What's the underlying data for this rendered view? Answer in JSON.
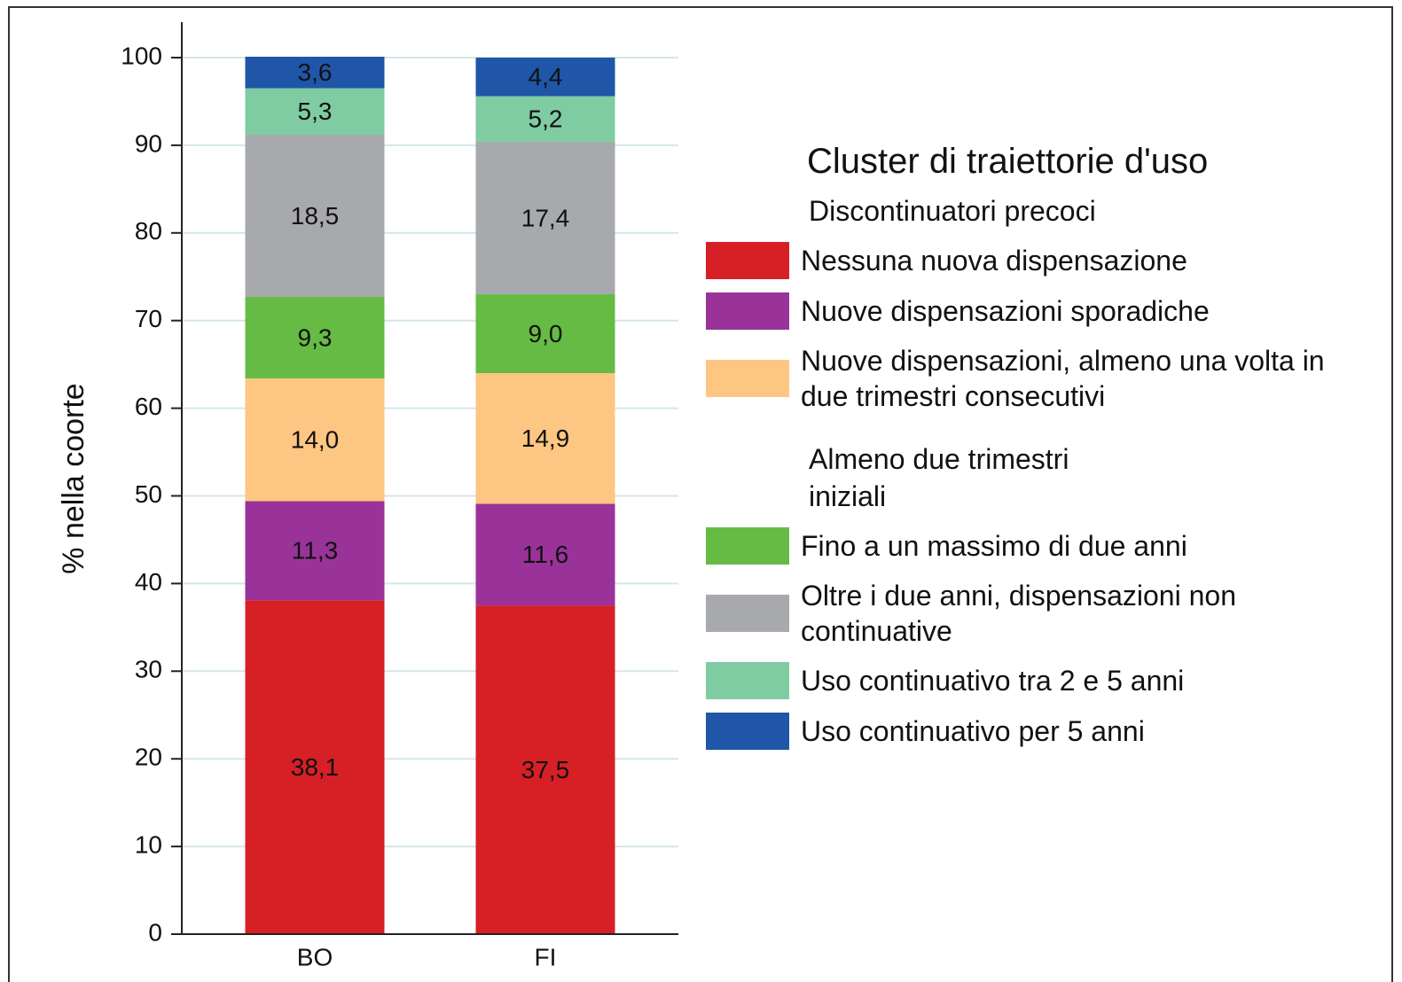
{
  "chart_data": {
    "type": "stacked_bar",
    "ylabel": "% nella coorte",
    "categories": [
      "BO",
      "FI"
    ],
    "ylim": [
      0,
      100
    ],
    "yticks": [
      0,
      10,
      20,
      30,
      40,
      50,
      60,
      70,
      80,
      90,
      100
    ],
    "grid": true,
    "legend_title": "Cluster di traiettorie d'uso",
    "groups": [
      {
        "title": "Discontinuatori precoci",
        "series": [
          {
            "name": "Nessuna nuova dispensazione",
            "color": "#d71f26",
            "values": [
              38.1,
              37.5
            ],
            "value_labels": [
              "38,1",
              "37,5"
            ]
          },
          {
            "name": "Nuove dispensazioni sporadiche",
            "color": "#993399",
            "values": [
              11.3,
              11.6
            ],
            "value_labels": [
              "11,3",
              "11,6"
            ]
          },
          {
            "name": "Nuove dispensazioni, almeno una volta in due trimestri consecutivi",
            "color": "#fdc682",
            "values": [
              14.0,
              14.9
            ],
            "value_labels": [
              "14,0",
              "14,9"
            ]
          }
        ]
      },
      {
        "title": "Almeno due trimestri iniziali",
        "series": [
          {
            "name": "Fino a un massimo di due anni",
            "color": "#66bb44",
            "values": [
              9.3,
              9.0
            ],
            "value_labels": [
              "9,3",
              "9,0"
            ]
          },
          {
            "name": "Oltre i due anni, dispensazioni non continuative",
            "color": "#a7a9ac",
            "values": [
              18.5,
              17.4
            ],
            "value_labels": [
              "18,5",
              "17,4"
            ]
          },
          {
            "name": "Uso continuativo tra 2 e 5 anni",
            "color": "#7fcca3",
            "values": [
              5.3,
              5.2
            ],
            "value_labels": [
              "5,3",
              "5,2"
            ]
          },
          {
            "name": "Uso continuativo per 5 anni",
            "color": "#1f56a8",
            "values": [
              3.6,
              4.4
            ],
            "value_labels": [
              "3,6",
              "4,4"
            ]
          }
        ]
      }
    ]
  }
}
